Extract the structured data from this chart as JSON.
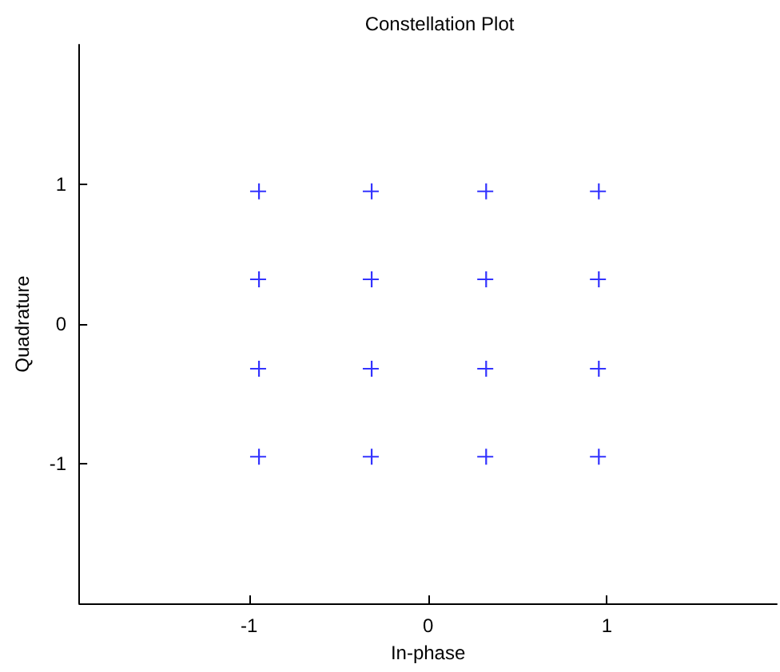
{
  "chart_data": {
    "type": "scatter",
    "title": "Constellation Plot",
    "xlabel": "In-phase",
    "ylabel": "Quadrature",
    "x": [
      -0.95,
      -0.32,
      0.32,
      0.95,
      -0.95,
      -0.32,
      0.32,
      0.95,
      -0.95,
      -0.32,
      0.32,
      0.95,
      -0.95,
      -0.32,
      0.32,
      0.95
    ],
    "series": [
      {
        "color": "#0000ff",
        "values": [
          0.95,
          0.95,
          0.95,
          0.95,
          0.32,
          0.32,
          0.32,
          0.32,
          -0.32,
          -0.32,
          -0.32,
          -0.32,
          -0.95,
          -0.95,
          -0.95,
          -0.95
        ]
      }
    ],
    "xlim": [
      -1.95,
      1.95
    ],
    "ylim": [
      -2,
      2
    ],
    "xticks": [
      -1,
      0,
      1
    ],
    "yticks": [
      -1,
      0,
      1
    ],
    "marker": "cross",
    "grid": false
  }
}
